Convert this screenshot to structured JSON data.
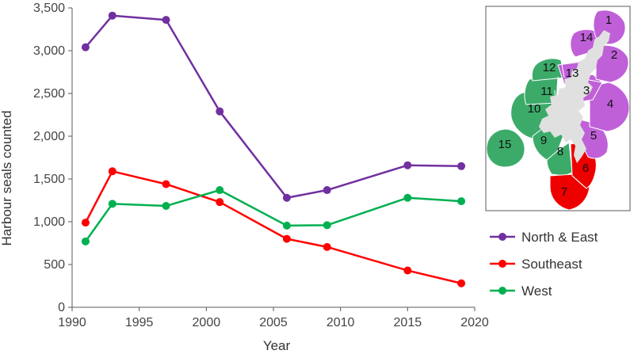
{
  "colors": {
    "north_east": "#7030A0",
    "southeast": "#FF0000",
    "west": "#00B050",
    "map_north_east": "#C060D8",
    "map_southeast": "#EE0000",
    "map_west": "#3CAB6A",
    "land": "#E0E0E0",
    "axis": "#595959"
  },
  "chart_data": {
    "type": "line",
    "xlabel": "Year",
    "ylabel": "Harbour seals counted",
    "xlim": [
      1990,
      2020
    ],
    "ylim": [
      0,
      3500
    ],
    "x_ticks": [
      "1990",
      "1995",
      "2000",
      "2005",
      "2010",
      "2015",
      "2020"
    ],
    "y_ticks": [
      "0",
      "500",
      "1,000",
      "1,500",
      "2,000",
      "2,500",
      "3,000",
      "3,500"
    ],
    "grid": false,
    "legend_position": "bottom-right",
    "x": [
      1991,
      1993,
      1997,
      2001,
      2006,
      2009,
      2015,
      2019
    ],
    "series": [
      {
        "name": "North & East",
        "color": "#7030A0",
        "values": [
          3040,
          3410,
          3360,
          2290,
          1280,
          1370,
          1660,
          1650
        ]
      },
      {
        "name": "Southeast",
        "color": "#FF0000",
        "values": [
          990,
          1590,
          1440,
          1230,
          800,
          705,
          430,
          280
        ]
      },
      {
        "name": "West",
        "color": "#00B050",
        "values": [
          770,
          1210,
          1185,
          1370,
          955,
          960,
          1280,
          1240
        ]
      }
    ]
  },
  "map": {
    "regions": [
      {
        "label": "1",
        "group": "north_east"
      },
      {
        "label": "2",
        "group": "north_east"
      },
      {
        "label": "3",
        "group": "north_east"
      },
      {
        "label": "4",
        "group": "north_east"
      },
      {
        "label": "5",
        "group": "north_east"
      },
      {
        "label": "6",
        "group": "southeast"
      },
      {
        "label": "7",
        "group": "southeast"
      },
      {
        "label": "8",
        "group": "west"
      },
      {
        "label": "9",
        "group": "west"
      },
      {
        "label": "10",
        "group": "west"
      },
      {
        "label": "11",
        "group": "west"
      },
      {
        "label": "12",
        "group": "west"
      },
      {
        "label": "13",
        "group": "north_east"
      },
      {
        "label": "14",
        "group": "north_east"
      },
      {
        "label": "15",
        "group": "west"
      }
    ]
  }
}
